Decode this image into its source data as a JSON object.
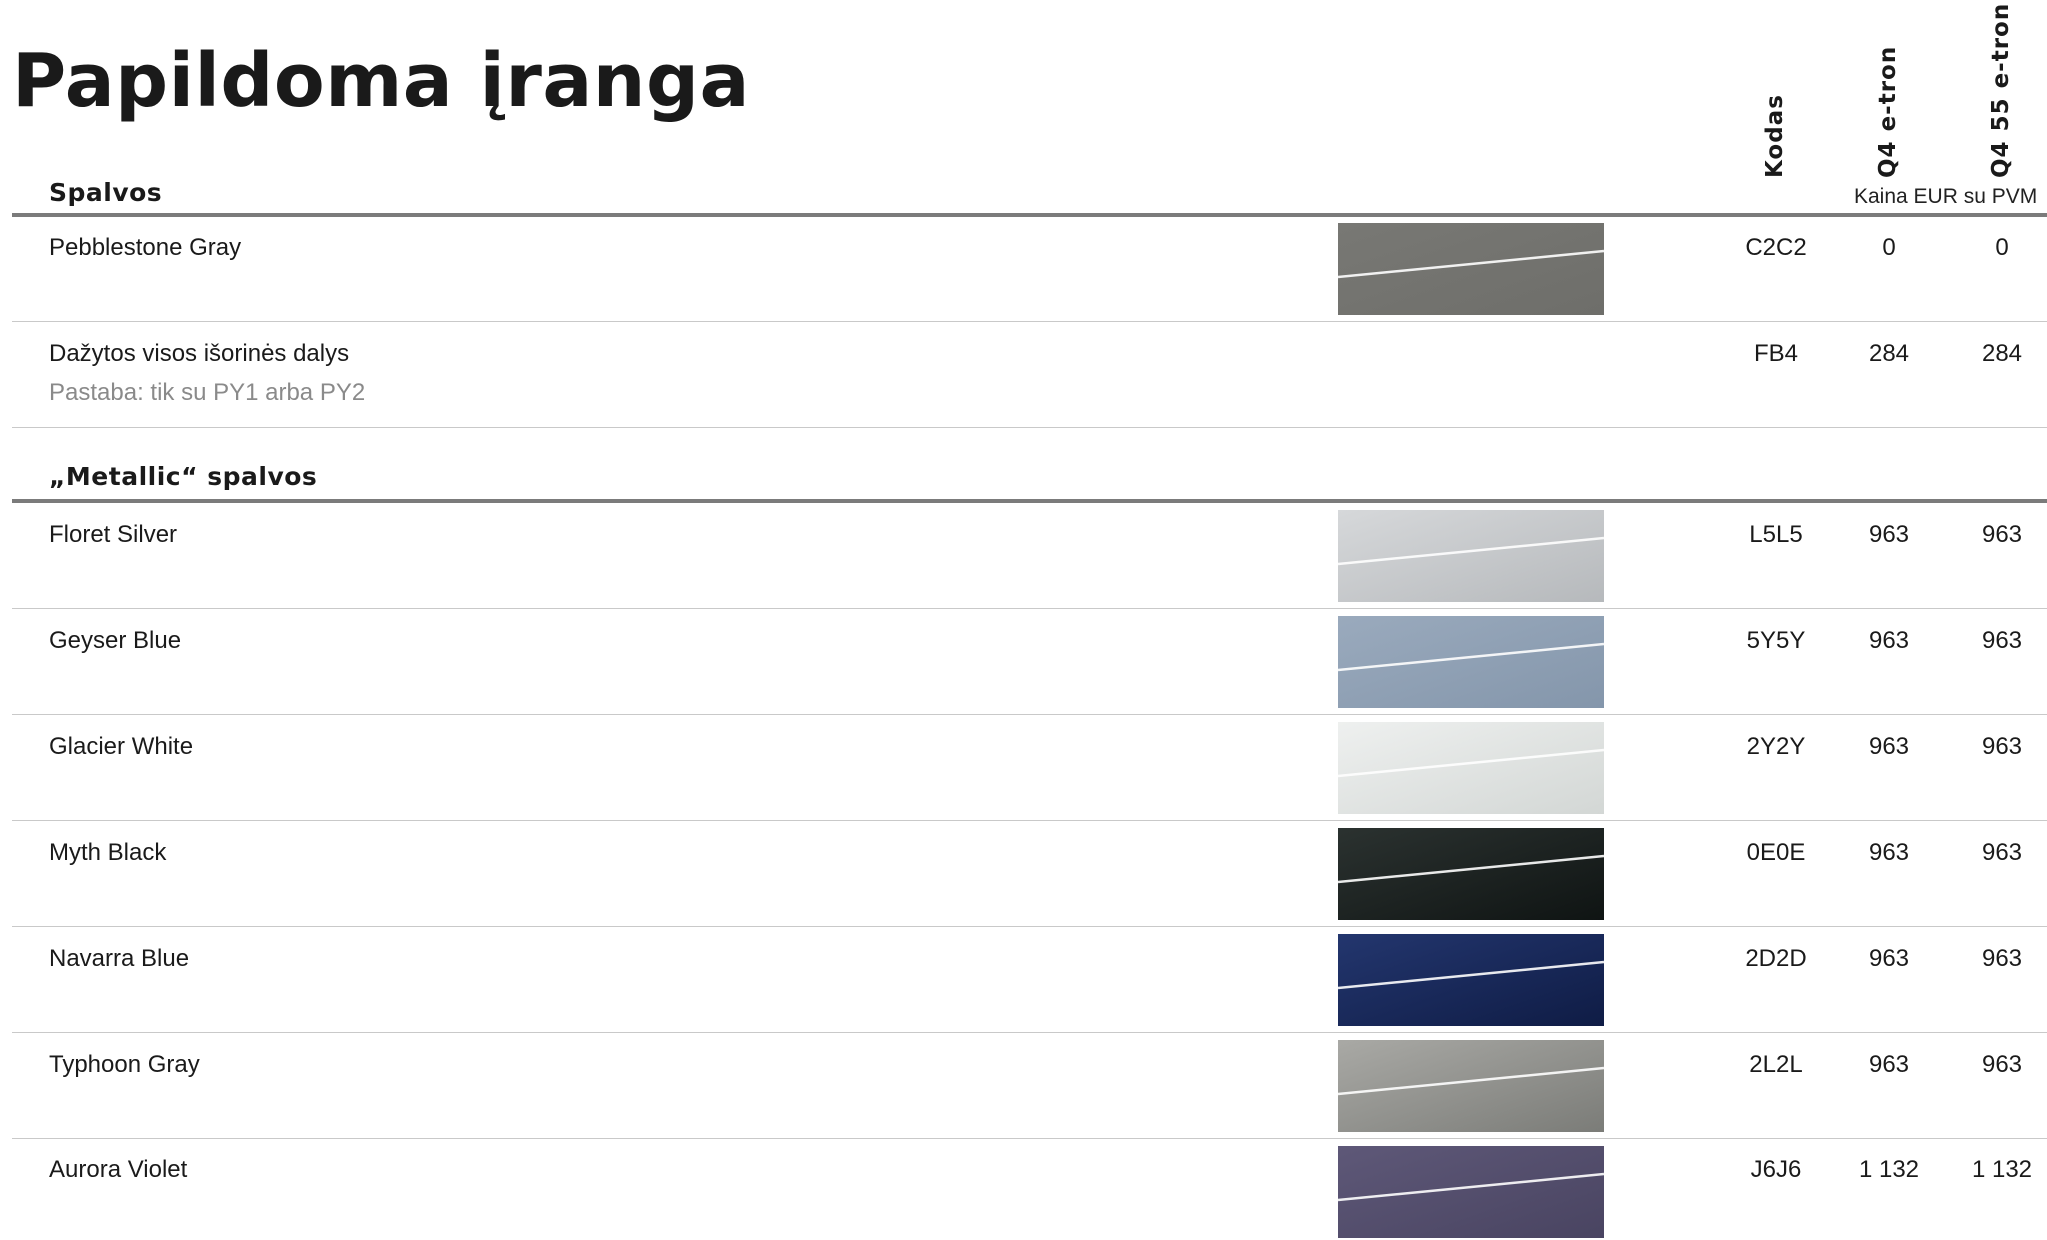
{
  "title": "Papildoma įranga",
  "columns": {
    "code": "Kodas",
    "model1": "Q4 e-tron",
    "model2": "Q4 55 e-tron",
    "price_note": "Kaina EUR su PVM"
  },
  "sections": [
    {
      "title": "Spalvos",
      "rows": [
        {
          "name": "Pebblestone Gray",
          "code": "C2C2",
          "price1": "0",
          "price2": "0",
          "color": "#787874",
          "color2": "#6e6e6a"
        },
        {
          "name": "Dažytos visos išorinės dalys",
          "note": "Pastaba: tik su PY1 arba PY2",
          "code": "FB4",
          "price1": "284",
          "price2": "284"
        }
      ]
    },
    {
      "title": "„Metallic“ spalvos",
      "rows": [
        {
          "name": "Floret Silver",
          "code": "L5L5",
          "price1": "963",
          "price2": "963",
          "color": "#d6d8da",
          "color2": "#b6b9bc"
        },
        {
          "name": "Geyser Blue",
          "code": "5Y5Y",
          "price1": "963",
          "price2": "963",
          "color": "#9aaabd",
          "color2": "#8496ab"
        },
        {
          "name": "Glacier White",
          "code": "2Y2Y",
          "price1": "963",
          "price2": "963",
          "color": "#eef0ef",
          "color2": "#d3d7d5"
        },
        {
          "name": "Myth Black",
          "code": "0E0E",
          "price1": "963",
          "price2": "963",
          "color": "#2b3230",
          "color2": "#0f1413"
        },
        {
          "name": "Navarra Blue",
          "code": "2D2D",
          "price1": "963",
          "price2": "963",
          "color": "#23366e",
          "color2": "#0f1c45"
        },
        {
          "name": "Typhoon Gray",
          "code": "2L2L",
          "price1": "963",
          "price2": "963",
          "color": "#a9a9a5",
          "color2": "#7b7c78"
        },
        {
          "name": "Aurora Violet",
          "code": "J6J6",
          "price1": "1 132",
          "price2": "1 132",
          "color": "#5e5878",
          "color2": "#494461"
        }
      ]
    }
  ]
}
